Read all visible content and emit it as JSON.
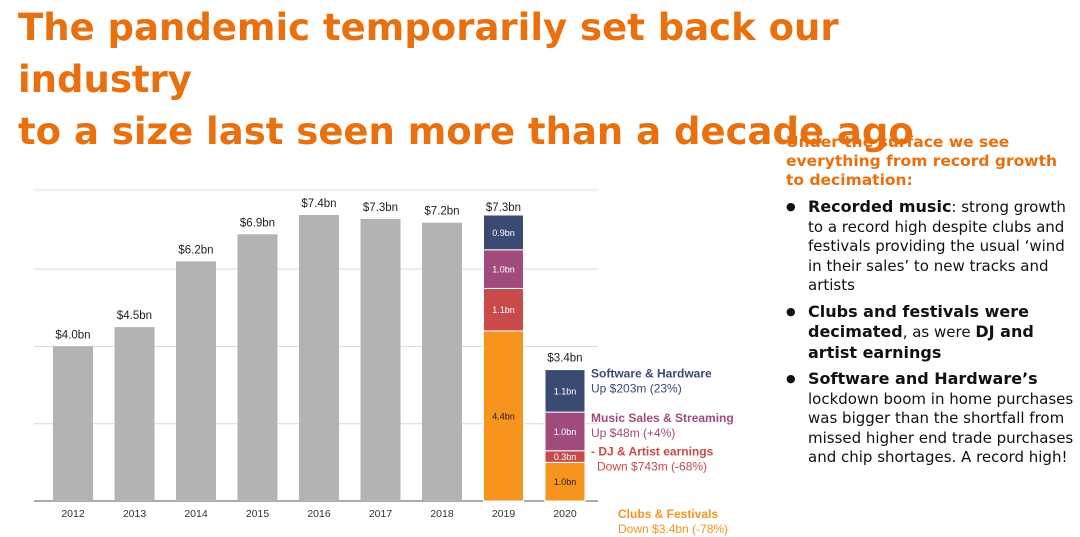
{
  "title": {
    "line1": "The pandemic temporarily set back our industry",
    "line2": "to a size last seen more than a decade ago"
  },
  "sidebar": {
    "heading": "Under the surface we see everything from record growth to decimation:",
    "bullets": [
      {
        "bold": "Recorded music",
        "rest": ": strong growth to a record high despite clubs and festivals providing the usual ‘wind in their sales’ to new tracks and artists"
      },
      {
        "bold": "Clubs and festivals were decimated",
        "rest": ", as were ",
        "bold2": "DJ and artist earnings",
        "rest2": ""
      },
      {
        "bold": "Software and Hardware’s",
        "rest": " lockdown boom in home purchases was bigger than the shortfall from missed higher end trade purchases and chip shortages. A record high!"
      }
    ]
  },
  "colors": {
    "gray": "#b3b3b3",
    "clubs": "#f7941d",
    "dj": "#c94a4a",
    "music": "#a14a7c",
    "software": "#3b4a73",
    "title": "#e8700f"
  },
  "chart_data": {
    "type": "bar",
    "categories": [
      "2012",
      "2013",
      "2014",
      "2015",
      "2016",
      "2017",
      "2018",
      "2019",
      "2020"
    ],
    "values": [
      4.0,
      4.5,
      6.2,
      6.9,
      7.4,
      7.3,
      7.2,
      7.3,
      3.4
    ],
    "total_labels": [
      "$4.0bn",
      "$4.5bn",
      "$6.2bn",
      "$6.9bn",
      "$7.4bn",
      "$7.3bn",
      "$7.2bn",
      "$7.3bn",
      "$3.4bn"
    ],
    "ylim": [
      0,
      7.4
    ],
    "grid": true,
    "stacked": {
      "categories": [
        "2019",
        "2020"
      ],
      "segments": [
        {
          "name": "Clubs & Festivals",
          "color_key": "clubs",
          "values": [
            4.4,
            1.0
          ],
          "labels": [
            "4.4bn",
            "1.0bn"
          ]
        },
        {
          "name": "DJ & Artist earnings",
          "color_key": "dj",
          "values": [
            1.1,
            0.3
          ],
          "labels": [
            "1.1bn",
            "0.3bn"
          ]
        },
        {
          "name": "Music Sales & Streaming",
          "color_key": "music",
          "values": [
            1.0,
            1.0
          ],
          "labels": [
            "1.0bn",
            "1.0bn"
          ]
        },
        {
          "name": "Software & Hardware",
          "color_key": "software",
          "values": [
            0.9,
            1.1
          ],
          "labels": [
            "0.9bn",
            "1.1bn"
          ]
        }
      ]
    },
    "annotations": [
      {
        "key": "software",
        "title": "Software & Hardware",
        "detail": "Up $203m (23%)",
        "color_key": "software",
        "segment": 3,
        "bold_title": true
      },
      {
        "key": "music",
        "title": "Music Sales & Streaming",
        "detail": "Up $48m (+4%)",
        "color_key": "music",
        "segment": 2,
        "bold_title": true
      },
      {
        "key": "dj",
        "title": "- DJ & Artist earnings",
        "detail": "Down $743m (-68%)",
        "color_key": "dj",
        "segment": 1,
        "bold_title": true
      },
      {
        "key": "clubs",
        "title": "Clubs & Festivals",
        "detail": "Down $3.4bn (-78%)",
        "color_key": "clubs",
        "segment": 0,
        "bold_title": true
      }
    ]
  }
}
